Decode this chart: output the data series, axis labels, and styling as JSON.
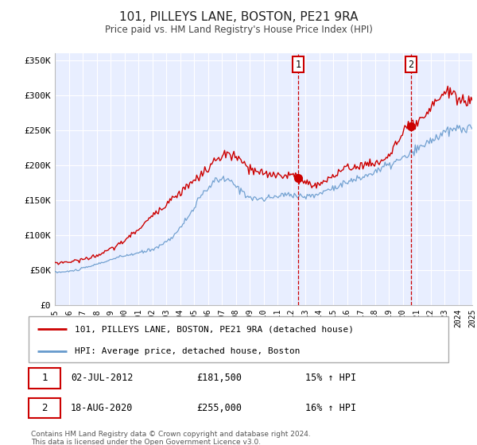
{
  "title": "101, PILLEYS LANE, BOSTON, PE21 9RA",
  "subtitle": "Price paid vs. HM Land Registry's House Price Index (HPI)",
  "plot_bg_color": "#e8eeff",
  "red_line_label": "101, PILLEYS LANE, BOSTON, PE21 9RA (detached house)",
  "blue_line_label": "HPI: Average price, detached house, Boston",
  "marker1_date": "02-JUL-2012",
  "marker1_x": 2012.5,
  "marker1_y": 181500,
  "marker1_price": "£181,500",
  "marker1_hpi": "15% ↑ HPI",
  "marker2_date": "18-AUG-2020",
  "marker2_x": 2020.6,
  "marker2_y": 255000,
  "marker2_price": "£255,000",
  "marker2_hpi": "16% ↑ HPI",
  "xlim": [
    1995,
    2025
  ],
  "ylim": [
    0,
    360000
  ],
  "yticks": [
    0,
    50000,
    100000,
    150000,
    200000,
    250000,
    300000,
    350000
  ],
  "ytick_labels": [
    "£0",
    "£50K",
    "£100K",
    "£150K",
    "£200K",
    "£250K",
    "£300K",
    "£350K"
  ],
  "footer": "Contains HM Land Registry data © Crown copyright and database right 2024.\nThis data is licensed under the Open Government Licence v3.0.",
  "red_color": "#cc0000",
  "blue_color": "#6699cc",
  "hpi_keypoints_x": [
    1995,
    1997,
    2000,
    2004,
    2007,
    2009,
    2012,
    2013,
    2015,
    2017,
    2019,
    2020.5,
    2022,
    2024,
    2025
  ],
  "hpi_keypoints_y": [
    47000,
    52000,
    70000,
    110000,
    180000,
    155000,
    158000,
    155000,
    168000,
    182000,
    200000,
    215000,
    235000,
    252000,
    252000
  ],
  "red_keypoints_x": [
    1995,
    1997,
    2000,
    2003,
    2006,
    2007.5,
    2009,
    2012,
    2012.5,
    2013.5,
    2015,
    2017,
    2019,
    2020.5,
    2021.5,
    2023,
    2024,
    2025
  ],
  "red_keypoints_y": [
    60000,
    65000,
    92000,
    145000,
    195000,
    215000,
    195000,
    185000,
    181500,
    172000,
    185000,
    200000,
    215000,
    255000,
    265000,
    305000,
    295000,
    298000
  ]
}
